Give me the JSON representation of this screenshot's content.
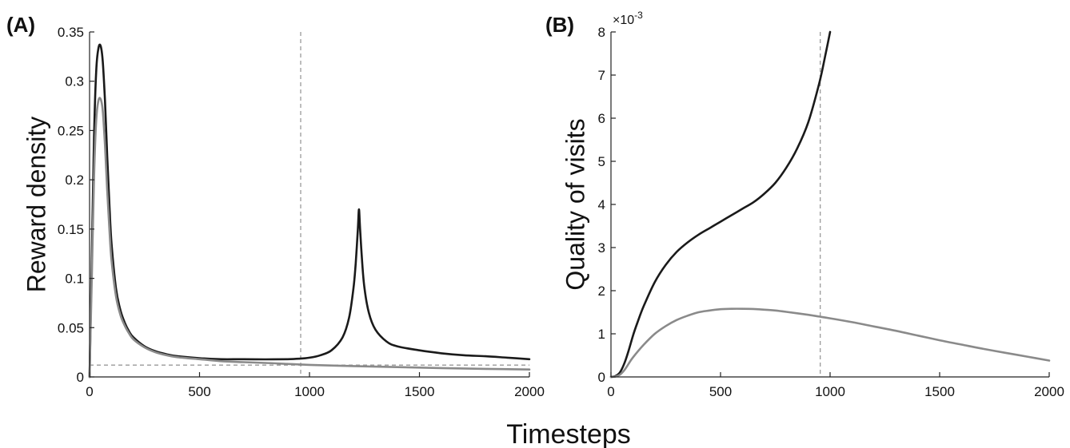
{
  "xlabel": "Timesteps",
  "chart_data": [
    {
      "type": "line",
      "panel_label": "(A)",
      "xlabel": "",
      "ylabel": "Reward density",
      "xlim": [
        0,
        2000
      ],
      "ylim": [
        0,
        0.35
      ],
      "xticks": [
        "0",
        "500",
        "1000",
        "1500",
        "2000"
      ],
      "yticks": [
        "0",
        "0.05",
        "0.1",
        "0.15",
        "0.2",
        "0.25",
        "0.3",
        "0.35"
      ],
      "grid": false,
      "vline_x": 960,
      "hline_y": 0.012,
      "series": [
        {
          "color": "#1a1a1a",
          "x": [
            0,
            10,
            20,
            30,
            40,
            50,
            60,
            70,
            80,
            90,
            100,
            120,
            140,
            160,
            180,
            200,
            250,
            300,
            350,
            400,
            500,
            600,
            700,
            800,
            900,
            950,
            1000,
            1050,
            1100,
            1150,
            1180,
            1200,
            1210,
            1220,
            1225,
            1230,
            1240,
            1250,
            1270,
            1300,
            1350,
            1400,
            1500,
            1600,
            1700,
            1800,
            1900,
            2000
          ],
          "y": [
            0.0,
            0.12,
            0.24,
            0.31,
            0.333,
            0.336,
            0.32,
            0.28,
            0.225,
            0.175,
            0.135,
            0.09,
            0.068,
            0.055,
            0.046,
            0.04,
            0.031,
            0.026,
            0.023,
            0.021,
            0.019,
            0.018,
            0.018,
            0.0178,
            0.018,
            0.0185,
            0.0195,
            0.022,
            0.027,
            0.04,
            0.06,
            0.09,
            0.115,
            0.15,
            0.17,
            0.15,
            0.115,
            0.09,
            0.065,
            0.048,
            0.036,
            0.031,
            0.027,
            0.024,
            0.022,
            0.021,
            0.0195,
            0.018
          ]
        },
        {
          "color": "#8a8a8a",
          "x": [
            0,
            10,
            20,
            30,
            40,
            50,
            60,
            70,
            80,
            90,
            100,
            120,
            140,
            160,
            180,
            200,
            250,
            300,
            350,
            400,
            500,
            600,
            700,
            800,
            900,
            1000,
            1200,
            1400,
            1600,
            1800,
            2000
          ],
          "y": [
            0.0,
            0.1,
            0.2,
            0.26,
            0.28,
            0.282,
            0.27,
            0.235,
            0.19,
            0.15,
            0.118,
            0.082,
            0.063,
            0.052,
            0.044,
            0.038,
            0.03,
            0.025,
            0.022,
            0.02,
            0.018,
            0.016,
            0.015,
            0.0142,
            0.0132,
            0.0122,
            0.011,
            0.01,
            0.009,
            0.0082,
            0.0075
          ]
        }
      ]
    },
    {
      "type": "line",
      "panel_label": "(B)",
      "xlabel": "",
      "ylabel": "Quality of visits",
      "y_exponent": "×10-3",
      "y_exponent_base": "×10",
      "y_exponent_power": "-3",
      "xlim": [
        0,
        2000
      ],
      "ylim": [
        0,
        8
      ],
      "xticks": [
        "0",
        "500",
        "1000",
        "1500",
        "2000"
      ],
      "yticks": [
        "0",
        "1",
        "2",
        "3",
        "4",
        "5",
        "6",
        "7",
        "8"
      ],
      "grid": false,
      "vline_x": 955,
      "series": [
        {
          "color": "#1a1a1a",
          "x": [
            0,
            20,
            40,
            60,
            80,
            100,
            120,
            150,
            200,
            250,
            300,
            350,
            400,
            450,
            500,
            550,
            600,
            650,
            700,
            750,
            800,
            850,
            900,
            950,
            980,
            1000
          ],
          "y": [
            0.0,
            0.02,
            0.1,
            0.3,
            0.6,
            0.95,
            1.25,
            1.65,
            2.2,
            2.6,
            2.9,
            3.12,
            3.3,
            3.45,
            3.6,
            3.75,
            3.9,
            4.05,
            4.25,
            4.5,
            4.85,
            5.3,
            5.9,
            6.8,
            7.5,
            8.0
          ]
        },
        {
          "color": "#8a8a8a",
          "x": [
            0,
            20,
            40,
            60,
            80,
            100,
            150,
            200,
            250,
            300,
            350,
            400,
            450,
            500,
            550,
            600,
            650,
            700,
            750,
            800,
            900,
            950,
            1000,
            1100,
            1200,
            1300,
            1400,
            1500,
            1600,
            1700,
            1800,
            1900,
            2000
          ],
          "y": [
            0.0,
            0.01,
            0.05,
            0.15,
            0.3,
            0.45,
            0.75,
            1.0,
            1.18,
            1.32,
            1.42,
            1.5,
            1.54,
            1.57,
            1.58,
            1.58,
            1.575,
            1.56,
            1.54,
            1.51,
            1.44,
            1.4,
            1.36,
            1.27,
            1.17,
            1.07,
            0.96,
            0.85,
            0.75,
            0.65,
            0.56,
            0.47,
            0.38
          ]
        }
      ]
    }
  ]
}
